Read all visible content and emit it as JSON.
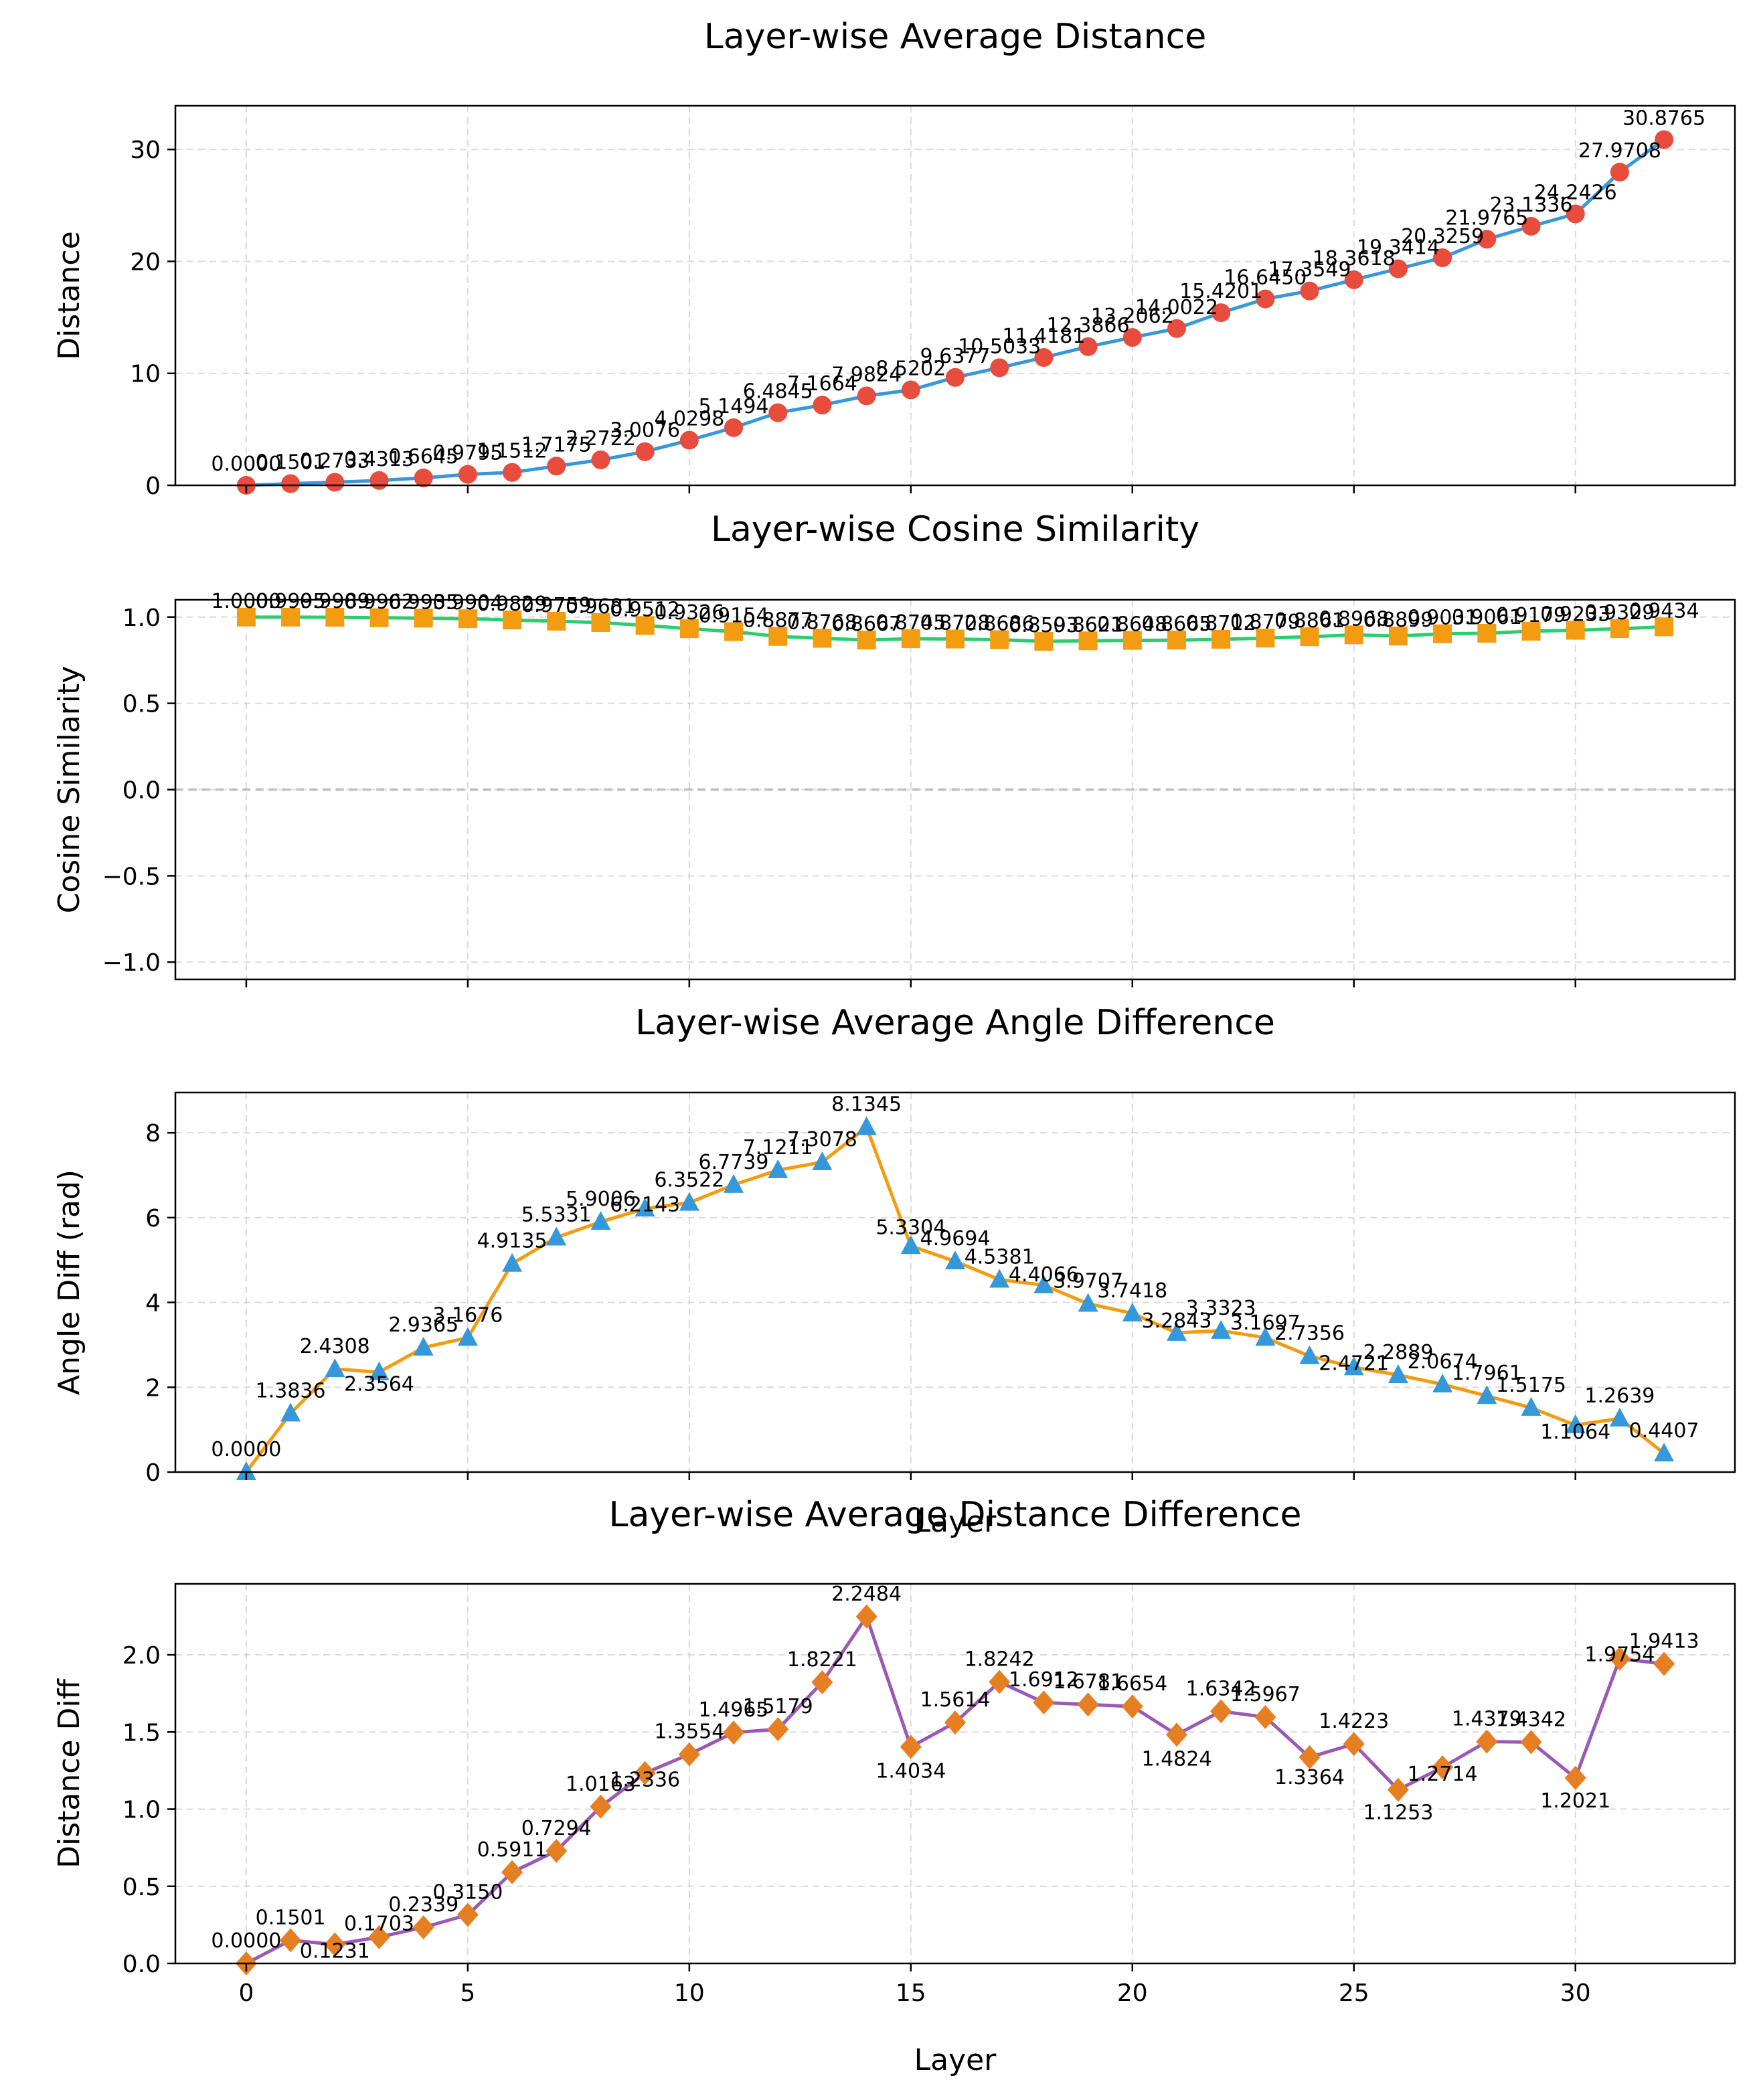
{
  "chart_data": [
    {
      "type": "line",
      "title": "Layer-wise Average Distance",
      "xlabel": "",
      "ylabel": "Distance",
      "xlim": [
        -1.6,
        33.6
      ],
      "ylim": [
        0,
        33.9
      ],
      "grid": true,
      "x": [
        0,
        1,
        2,
        3,
        4,
        5,
        6,
        7,
        8,
        9,
        10,
        11,
        12,
        13,
        14,
        15,
        16,
        17,
        18,
        19,
        20,
        21,
        22,
        23,
        24,
        25,
        26,
        27,
        28,
        29,
        30,
        31,
        32
      ],
      "values": [
        0.0,
        0.1501,
        0.2733,
        0.4313,
        0.6645,
        0.9795,
        1.1512,
        1.7175,
        2.2722,
        3.0076,
        4.0298,
        5.1494,
        6.4845,
        7.1664,
        7.9824,
        8.5202,
        9.6377,
        10.5033,
        11.4181,
        12.3866,
        13.2062,
        14.0022,
        15.4201,
        16.645,
        17.3549,
        18.3618,
        19.3414,
        20.3259,
        21.9765,
        23.1336,
        24.2426,
        27.9708,
        30.8765
      ],
      "labels": [
        "0.0000",
        "0.1501",
        "0.2733",
        "0.4313",
        "0.6645",
        "0.9795",
        "1.1512",
        "1.7175",
        "2.2722",
        "3.0076",
        "4.0298",
        "5.1494",
        "6.4845",
        "7.1664",
        "7.9824",
        "8.5202",
        "9.6377",
        "10.5033",
        "11.4181",
        "12.3866",
        "13.2062",
        "14.0022",
        "15.4201",
        "16.6450",
        "17.3549",
        "18.3618",
        "19.3414",
        "20.3259",
        "21.9765",
        "23.1336",
        "24.2426",
        "27.9708",
        "30.8765"
      ],
      "xticks": [
        0,
        5,
        10,
        15,
        20,
        25,
        30
      ],
      "show_xtick_labels": false,
      "yticks": [
        0,
        10,
        20,
        30
      ],
      "ytick_labels": [
        "0",
        "10",
        "20",
        "30"
      ],
      "line_color": "#3498db",
      "marker_color": "#e74c3c",
      "marker": "circle"
    },
    {
      "type": "line",
      "title": "Layer-wise Cosine Similarity",
      "xlabel": "",
      "ylabel": "Cosine Similarity",
      "xlim": [
        -1.6,
        33.6
      ],
      "ylim": [
        -1.1,
        1.1
      ],
      "grid": true,
      "zero_line": true,
      "x": [
        0,
        1,
        2,
        3,
        4,
        5,
        6,
        7,
        8,
        9,
        10,
        11,
        12,
        13,
        14,
        15,
        16,
        17,
        18,
        19,
        20,
        21,
        22,
        23,
        24,
        25,
        26,
        27,
        28,
        29,
        30,
        31,
        32
      ],
      "values": [
        1.0,
        0.9995,
        0.9989,
        0.9962,
        0.9935,
        0.9904,
        0.9829,
        0.9759,
        0.9681,
        0.9512,
        0.9326,
        0.9154,
        0.8877,
        0.8768,
        0.8667,
        0.8745,
        0.8728,
        0.8686,
        0.8593,
        0.8621,
        0.8648,
        0.8665,
        0.8712,
        0.8779,
        0.8861,
        0.8968,
        0.8899,
        0.9031,
        0.9061,
        0.9179,
        0.9233,
        0.9329,
        0.9434
      ],
      "labels": [
        "1.0000",
        "0.9995",
        "0.9989",
        "0.9962",
        "0.9935",
        "0.9904",
        "0.9829",
        "0.9759",
        "0.9681",
        "0.9512",
        "0.9326",
        "0.9154",
        "0.8877",
        "0.8768",
        "0.8667",
        "0.8745",
        "0.8728",
        "0.8686",
        "0.8593",
        "0.8621",
        "0.8648",
        "0.8665",
        "0.8712",
        "0.8779",
        "0.8861",
        "0.8968",
        "0.8899",
        "0.9031",
        "0.9061",
        "0.9179",
        "0.9233",
        "0.9329",
        "0.9434"
      ],
      "xticks": [
        0,
        5,
        10,
        15,
        20,
        25,
        30
      ],
      "show_xtick_labels": false,
      "yticks": [
        -1.0,
        -0.5,
        0.0,
        0.5,
        1.0
      ],
      "ytick_labels": [
        "−1.0",
        "−0.5",
        "0.0",
        "0.5",
        "1.0"
      ],
      "line_color": "#2ecc71",
      "marker_color": "#f39c12",
      "marker": "square"
    },
    {
      "type": "line",
      "title": "Layer-wise Average Angle Difference",
      "xlabel": "Layer",
      "ylabel": "Angle Diff (rad)",
      "xlim": [
        -1.6,
        33.6
      ],
      "ylim": [
        0,
        8.95
      ],
      "grid": true,
      "x": [
        0,
        1,
        2,
        3,
        4,
        5,
        6,
        7,
        8,
        9,
        10,
        11,
        12,
        13,
        14,
        15,
        16,
        17,
        18,
        19,
        20,
        21,
        22,
        23,
        24,
        25,
        26,
        27,
        28,
        29,
        30,
        31,
        32
      ],
      "values": [
        0.0,
        1.3836,
        2.4308,
        2.3564,
        2.9365,
        3.1676,
        4.9135,
        5.5331,
        5.9006,
        6.2143,
        6.3522,
        6.7739,
        7.1211,
        7.3078,
        8.1345,
        5.3304,
        4.9694,
        4.5381,
        4.4066,
        3.9707,
        3.7418,
        3.2843,
        3.3323,
        3.1697,
        2.7356,
        2.4721,
        2.2889,
        2.0674,
        1.7961,
        1.5175,
        1.1064,
        1.2639,
        0.4407
      ],
      "labels": [
        "0.0000",
        "1.3836",
        "2.4308",
        "2.3564",
        "2.9365",
        "3.1676",
        "4.9135",
        "5.5331",
        "5.9006",
        "6.2143",
        "6.3522",
        "6.7739",
        "7.1211",
        "7.3078",
        "8.1345",
        "5.3304",
        "4.9694",
        "4.5381",
        "4.4066",
        "3.9707",
        "3.7418",
        "3.2843",
        "3.3323",
        "3.1697",
        "2.7356",
        "2.4721",
        "2.2889",
        "2.0674",
        "1.7961",
        "1.5175",
        "1.1064",
        "1.2639",
        "0.4407"
      ],
      "xticks": [
        0,
        5,
        10,
        15,
        20,
        25,
        30
      ],
      "show_xtick_labels": false,
      "yticks": [
        0,
        2,
        4,
        6,
        8
      ],
      "ytick_labels": [
        "0",
        "2",
        "4",
        "6",
        "8"
      ],
      "line_color": "#f39c12",
      "marker_color": "#3498db",
      "marker": "triangle"
    },
    {
      "type": "line",
      "title": "Layer-wise Average Distance Difference",
      "xlabel": "Layer",
      "ylabel": "Distance Diff",
      "xlim": [
        -1.6,
        33.6
      ],
      "ylim": [
        0,
        2.46
      ],
      "grid": true,
      "x": [
        0,
        1,
        2,
        3,
        4,
        5,
        6,
        7,
        8,
        9,
        10,
        11,
        12,
        13,
        14,
        15,
        16,
        17,
        18,
        19,
        20,
        21,
        22,
        23,
        24,
        25,
        26,
        27,
        28,
        29,
        30,
        31,
        32
      ],
      "values": [
        0.0,
        0.1501,
        0.1231,
        0.1703,
        0.2339,
        0.315,
        0.5911,
        0.7294,
        1.0163,
        1.2336,
        1.3554,
        1.4965,
        1.5179,
        1.8221,
        2.2484,
        1.4034,
        1.5614,
        1.8242,
        1.6912,
        1.6781,
        1.6654,
        1.4824,
        1.6342,
        1.5967,
        1.3364,
        1.4223,
        1.1253,
        1.2714,
        1.4379,
        1.4342,
        1.2021,
        1.9754,
        1.9413
      ],
      "labels": [
        "0.0000",
        "0.1501",
        "0.1231",
        "0.1703",
        "0.2339",
        "0.3150",
        "0.5911",
        "0.7294",
        "1.0163",
        "1.2336",
        "1.3554",
        "1.4965",
        "1.5179",
        "1.8221",
        "2.2484",
        "1.4034",
        "1.5614",
        "1.8242",
        "1.6912",
        "1.6781",
        "1.6654",
        "1.4824",
        "1.6342",
        "1.5967",
        "1.3364",
        "1.4223",
        "1.1253",
        "1.2714",
        "1.4379",
        "1.4342",
        "1.2021",
        "1.9754",
        "1.9413"
      ],
      "xticks": [
        0,
        5,
        10,
        15,
        20,
        25,
        30
      ],
      "show_xtick_labels": true,
      "xtick_labels": [
        "0",
        "5",
        "10",
        "15",
        "20",
        "25",
        "30"
      ],
      "yticks": [
        0.0,
        0.5,
        1.0,
        1.5,
        2.0
      ],
      "ytick_labels": [
        "0.0",
        "0.5",
        "1.0",
        "1.5",
        "2.0"
      ],
      "line_color": "#9b59b6",
      "marker_color": "#e67e22",
      "marker": "diamond"
    }
  ]
}
